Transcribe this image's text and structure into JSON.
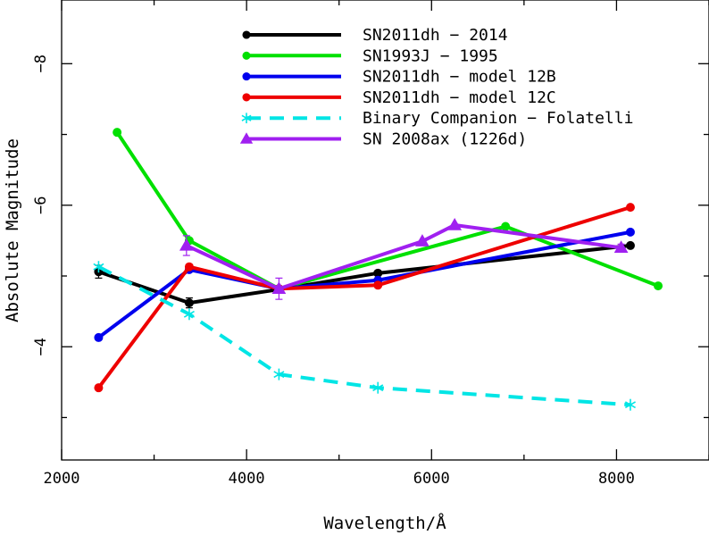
{
  "chart_data": {
    "type": "line",
    "title": "",
    "xlabel": "Wavelength/Å",
    "ylabel": "Absolute Magnitude",
    "xlim": [
      2000,
      9000
    ],
    "ylim": [
      -2.4,
      -8.9
    ],
    "y_inverted": true,
    "grid": false,
    "legend_position": "top-right",
    "x_ticks": [
      {
        "value": 2000,
        "label": "2000"
      },
      {
        "value": 4000,
        "label": "4000"
      },
      {
        "value": 6000,
        "label": "6000"
      },
      {
        "value": 8000,
        "label": "8000"
      }
    ],
    "y_ticks": [
      {
        "value": -4,
        "label": "−4"
      },
      {
        "value": -6,
        "label": "−6"
      },
      {
        "value": -8,
        "label": "−8"
      }
    ],
    "series": [
      {
        "name": "SN2011dh − 2014",
        "color": "#000000",
        "dashed": false,
        "marker": "circle",
        "x": [
          2400,
          3380,
          4350,
          5420,
          8150
        ],
        "y": [
          -5.06,
          -4.62,
          -4.81,
          -5.04,
          -5.43
        ],
        "yerr": [
          0.09,
          0.07,
          0,
          0,
          0
        ]
      },
      {
        "name": "SN1993J − 1995",
        "color": "#00e000",
        "dashed": false,
        "marker": "circle",
        "x": [
          2600,
          3380,
          4350,
          6800,
          8450
        ],
        "y": [
          -7.03,
          -5.5,
          -4.82,
          -5.7,
          -4.86
        ],
        "yerr": [
          0,
          0,
          0,
          0,
          0
        ]
      },
      {
        "name": "SN2011dh − model 12B",
        "color": "#0000ee",
        "dashed": false,
        "marker": "circle",
        "x": [
          2400,
          3380,
          4350,
          5420,
          8150
        ],
        "y": [
          -4.13,
          -5.09,
          -4.82,
          -4.94,
          -5.62
        ],
        "yerr": [
          0,
          0,
          0,
          0,
          0
        ]
      },
      {
        "name": "SN2011dh − model 12C",
        "color": "#ee0000",
        "dashed": false,
        "marker": "circle",
        "x": [
          2400,
          3380,
          4350,
          5420,
          8150
        ],
        "y": [
          -3.42,
          -5.13,
          -4.82,
          -4.87,
          -5.97
        ],
        "yerr": [
          0,
          0,
          0,
          0,
          0
        ]
      },
      {
        "name": "Binary Companion − Folatelli",
        "color": "#00e5e5",
        "dashed": true,
        "marker": "asterisk",
        "x": [
          2400,
          3380,
          4350,
          5420,
          8150
        ],
        "y": [
          -5.13,
          -4.46,
          -3.61,
          -3.42,
          -3.18
        ],
        "yerr": [
          0,
          0,
          0,
          0,
          0
        ]
      },
      {
        "name": "SN 2008ax (1226d)",
        "color": "#a020f0",
        "dashed": false,
        "marker": "triangle",
        "x": [
          3350,
          4350,
          5900,
          6250,
          8050
        ],
        "y": [
          -5.43,
          -4.82,
          -5.49,
          -5.72,
          -5.4
        ],
        "yerr": [
          0.14,
          0.15,
          0,
          0,
          0.05
        ]
      }
    ]
  }
}
